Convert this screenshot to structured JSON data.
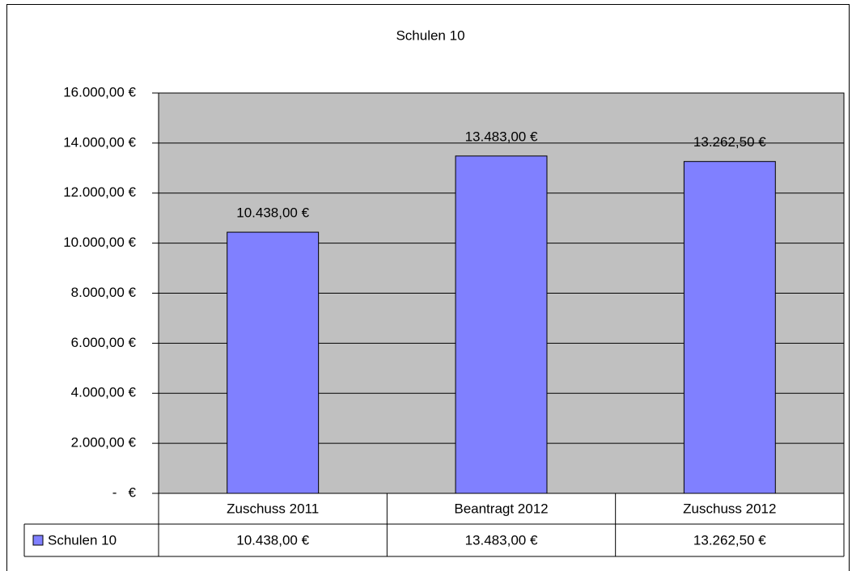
{
  "chart_data": {
    "type": "bar",
    "title": "Schulen 10",
    "categories": [
      "Zuschuss 2011",
      "Beantragt 2012",
      "Zuschuss 2012"
    ],
    "series": [
      {
        "name": "Schulen 10",
        "color": "#8080ff",
        "values": [
          10438,
          13483,
          13262.5
        ],
        "value_labels": [
          "10.438,00 €",
          "13.483,00 €",
          "13.262,50 €"
        ]
      }
    ],
    "ylim": [
      0,
      16000
    ],
    "yticks": [
      {
        "value": 0,
        "label": "-   €"
      },
      {
        "value": 2000,
        "label": "2.000,00 €"
      },
      {
        "value": 4000,
        "label": "4.000,00 €"
      },
      {
        "value": 6000,
        "label": "6.000,00 €"
      },
      {
        "value": 8000,
        "label": "8.000,00 €"
      },
      {
        "value": 10000,
        "label": "10.000,00 €"
      },
      {
        "value": 12000,
        "label": "12.000,00 €"
      },
      {
        "value": 14000,
        "label": "14.000,00 €"
      },
      {
        "value": 16000,
        "label": "16.000,00 €"
      }
    ],
    "grid": true,
    "plot_background": "#c0c0c0",
    "data_table": true
  }
}
